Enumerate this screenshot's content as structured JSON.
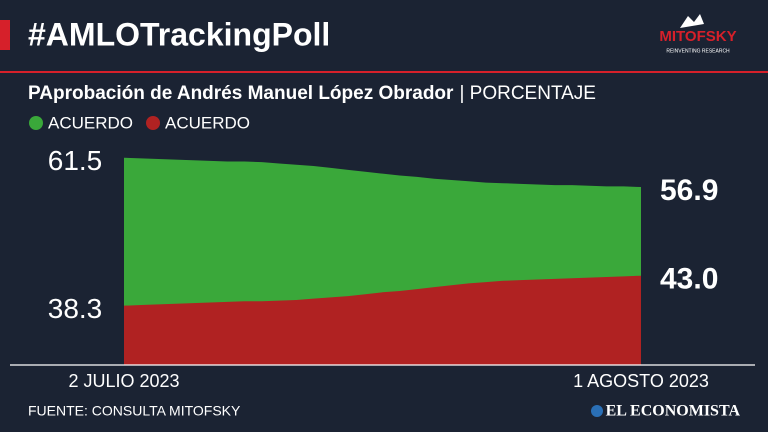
{
  "chart_data": {
    "type": "area",
    "title": "#AMLOTrackingPoll",
    "subtitle": "PAprobación de Andrés Manuel López Obrador",
    "unit_label": "| PORCENTAJE",
    "source": "FUENTE: CONSULTA MITOFSKY",
    "categories": [
      "2 JULIO 2023",
      null,
      null,
      null,
      null,
      null,
      null,
      null,
      null,
      null,
      null,
      null,
      null,
      null,
      null,
      null,
      null,
      null,
      null,
      null,
      null,
      null,
      null,
      null,
      null,
      null,
      null,
      null,
      null,
      null,
      "1 AGOSTO 2023"
    ],
    "series": [
      {
        "name": "ACUERDO",
        "color": "#3aa83a",
        "values": [
          61.5,
          61.4,
          61.3,
          61.2,
          61.1,
          61.0,
          60.9,
          60.9,
          60.8,
          60.6,
          60.4,
          60.2,
          59.9,
          59.6,
          59.3,
          59.0,
          58.7,
          58.5,
          58.2,
          58.0,
          57.8,
          57.6,
          57.5,
          57.4,
          57.3,
          57.2,
          57.2,
          57.1,
          57.0,
          57.0,
          56.9
        ]
      },
      {
        "name": "ACUERDO",
        "color": "#b02222",
        "values": [
          38.3,
          38.4,
          38.5,
          38.6,
          38.7,
          38.8,
          38.9,
          39.0,
          39.0,
          39.1,
          39.2,
          39.4,
          39.6,
          39.8,
          40.1,
          40.4,
          40.6,
          40.9,
          41.2,
          41.5,
          41.8,
          42.0,
          42.2,
          42.3,
          42.4,
          42.5,
          42.6,
          42.7,
          42.8,
          42.9,
          43.0
        ],
        "value_labels": [
          "38.3",
          null,
          null,
          null,
          null,
          null,
          null,
          null,
          null,
          null,
          null,
          null,
          null,
          null,
          null,
          null,
          null,
          null,
          null,
          null,
          null,
          null,
          null,
          null,
          null,
          null,
          null,
          null,
          null,
          null,
          "43.0"
        ]
      }
    ],
    "ylim": [
      29,
      66
    ]
  },
  "branding": {
    "logo": "MITOFSKY",
    "tagline": "REINVENTING RESEARCH",
    "publisher": "EL ECONOMISTA"
  }
}
